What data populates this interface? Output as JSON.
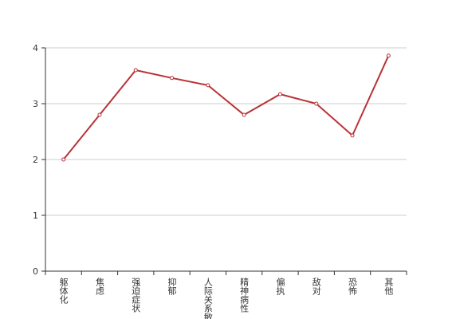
{
  "chart_data": {
    "type": "line",
    "categories": [
      "躯体化",
      "焦虑",
      "强迫症状",
      "抑郁",
      "人际关系敏感",
      "精神病性",
      "偏执",
      "敌对",
      "恐怖",
      "其他"
    ],
    "values": [
      2.0,
      2.8,
      3.6,
      3.46,
      3.33,
      2.8,
      3.17,
      3.0,
      2.43,
      3.86
    ],
    "color": "#b83236",
    "ylim": [
      0,
      4
    ],
    "yticks": [
      0,
      1,
      2,
      3,
      4
    ],
    "grid": true
  }
}
